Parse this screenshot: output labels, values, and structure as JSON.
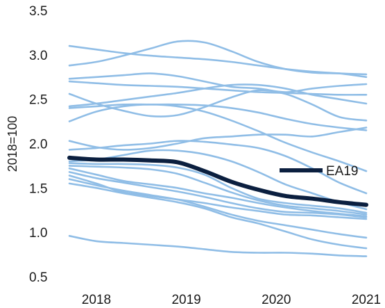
{
  "chart_data": {
    "type": "line",
    "title": "",
    "xlabel": "",
    "ylabel": "2018=100",
    "xlim": [
      2017.7,
      2021
    ],
    "ylim": [
      0.5,
      3.5
    ],
    "x_ticks": [
      "2018",
      "2019",
      "2020",
      "2021"
    ],
    "y_ticks": [
      "3.5",
      "3.0",
      "2.5",
      "2.0",
      "1.5",
      "1.0",
      "0.5"
    ],
    "grid": false,
    "legend": {
      "position": "right",
      "entries": [
        "EA19"
      ]
    },
    "colors": {
      "background_series": "#8fbde6",
      "highlight_series": "#0b1f3f"
    },
    "x": [
      2017.7,
      2018.0,
      2018.3,
      2018.6,
      2018.9,
      2019.2,
      2019.5,
      2019.8,
      2020.1,
      2020.4,
      2020.7,
      2021.0
    ],
    "highlight": {
      "name": "EA19",
      "values": [
        1.84,
        1.82,
        1.82,
        1.81,
        1.79,
        1.69,
        1.57,
        1.48,
        1.41,
        1.38,
        1.34,
        1.31
      ]
    },
    "series": [
      {
        "values": [
          3.1,
          3.06,
          3.02,
          2.99,
          2.97,
          2.95,
          2.92,
          2.88,
          2.84,
          2.81,
          2.79,
          2.75
        ]
      },
      {
        "values": [
          2.88,
          2.92,
          2.99,
          3.07,
          3.15,
          3.14,
          3.04,
          2.92,
          2.84,
          2.8,
          2.79,
          2.78
        ]
      },
      {
        "values": [
          2.73,
          2.75,
          2.77,
          2.79,
          2.76,
          2.7,
          2.64,
          2.62,
          2.58,
          2.62,
          2.65,
          2.67
        ]
      },
      {
        "values": [
          2.7,
          2.68,
          2.66,
          2.65,
          2.64,
          2.62,
          2.6,
          2.58,
          2.57,
          2.56,
          2.55,
          2.55
        ]
      },
      {
        "values": [
          2.56,
          2.45,
          2.37,
          2.31,
          2.32,
          2.41,
          2.52,
          2.6,
          2.56,
          2.44,
          2.3,
          2.26
        ]
      },
      {
        "values": [
          2.42,
          2.45,
          2.49,
          2.53,
          2.57,
          2.62,
          2.66,
          2.66,
          2.62,
          2.55,
          2.5,
          2.45
        ]
      },
      {
        "values": [
          2.4,
          2.42,
          2.44,
          2.44,
          2.44,
          2.43,
          2.4,
          2.35,
          2.28,
          2.22,
          2.18,
          2.15
        ]
      },
      {
        "values": [
          2.25,
          2.36,
          2.42,
          2.44,
          2.42,
          2.36,
          2.26,
          2.14,
          2.01,
          1.9,
          1.8,
          1.69
        ]
      },
      {
        "values": [
          2.03,
          1.96,
          1.93,
          1.95,
          2.0,
          2.06,
          2.08,
          2.1,
          2.1,
          2.08,
          2.13,
          2.18
        ]
      },
      {
        "values": [
          1.93,
          1.95,
          1.98,
          2.0,
          2.03,
          2.02,
          1.99,
          1.95,
          1.86,
          1.72,
          1.56,
          1.44
        ]
      },
      {
        "values": [
          1.8,
          1.82,
          1.87,
          1.92,
          1.92,
          1.88,
          1.8,
          1.68,
          1.54,
          1.44,
          1.34,
          1.26
        ]
      },
      {
        "values": [
          1.78,
          1.77,
          1.77,
          1.76,
          1.73,
          1.65,
          1.5,
          1.38,
          1.33,
          1.3,
          1.27,
          1.22
        ]
      },
      {
        "values": [
          1.75,
          1.74,
          1.73,
          1.71,
          1.66,
          1.56,
          1.45,
          1.36,
          1.3,
          1.27,
          1.24,
          1.2
        ]
      },
      {
        "values": [
          1.72,
          1.65,
          1.58,
          1.54,
          1.5,
          1.44,
          1.39,
          1.33,
          1.28,
          1.24,
          1.21,
          1.18
        ]
      },
      {
        "values": [
          1.68,
          1.61,
          1.56,
          1.51,
          1.46,
          1.4,
          1.33,
          1.27,
          1.23,
          1.22,
          1.2,
          1.17
        ]
      },
      {
        "values": [
          1.64,
          1.55,
          1.45,
          1.41,
          1.37,
          1.33,
          1.28,
          1.24,
          1.2,
          1.19,
          1.17,
          1.15
        ]
      },
      {
        "values": [
          1.6,
          1.53,
          1.47,
          1.42,
          1.37,
          1.29,
          1.2,
          1.13,
          1.08,
          1.03,
          0.98,
          0.94
        ]
      },
      {
        "values": [
          1.55,
          1.5,
          1.44,
          1.39,
          1.34,
          1.27,
          1.17,
          1.1,
          1.01,
          0.92,
          0.86,
          0.82
        ]
      },
      {
        "values": [
          0.96,
          0.9,
          0.88,
          0.86,
          0.84,
          0.81,
          0.78,
          0.77,
          0.77,
          0.76,
          0.74,
          0.73
        ]
      }
    ]
  }
}
